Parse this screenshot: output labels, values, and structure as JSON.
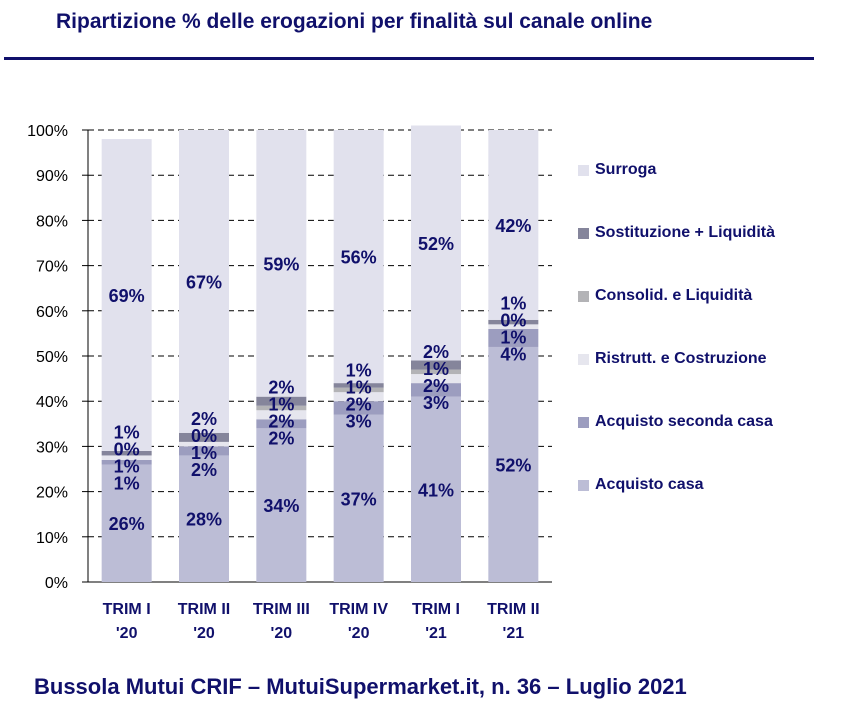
{
  "title": "Ripartizione %  delle erogazioni per finalità sul canale online",
  "footer": "Bussola Mutui CRIF – MutuiSupermarket.it, n. 36 – Luglio 2021",
  "chart_data": {
    "type": "bar",
    "stacked": true,
    "categories": [
      "TRIM I\n'20",
      "TRIM II\n'20",
      "TRIM III\n'20",
      "TRIM IV\n'20",
      "TRIM I\n'21",
      "TRIM II\n'21"
    ],
    "ylim": [
      0,
      100
    ],
    "yticks": [
      "0%",
      "10%",
      "20%",
      "30%",
      "40%",
      "50%",
      "60%",
      "70%",
      "80%",
      "90%",
      "100%"
    ],
    "grid": true,
    "legend_position": "right",
    "series": [
      {
        "name": "Acquisto casa",
        "color": "#bcbdd6",
        "values": [
          26,
          28,
          34,
          37,
          41,
          52
        ],
        "labels": [
          "26%",
          "28%",
          "34%",
          "37%",
          "41%",
          "52%"
        ]
      },
      {
        "name": "Acquisto seconda casa",
        "color": "#9c9dbf",
        "values": [
          1,
          2,
          2,
          3,
          3,
          4
        ],
        "labels": [
          "1%",
          "2%",
          "2%",
          "3%",
          "3%",
          "4%"
        ]
      },
      {
        "name": "Ristrutt. e Costruzione",
        "color": "#e6e6ee",
        "values": [
          1,
          1,
          2,
          2,
          2,
          1
        ],
        "labels": [
          "1%",
          "1%",
          "2%",
          "2%",
          "2%",
          "1%"
        ]
      },
      {
        "name": "Consolid. e Liquidità",
        "color": "#b3b3b6",
        "values": [
          0,
          0,
          1,
          1,
          1,
          0
        ],
        "labels": [
          "0%",
          "0%",
          "1%",
          "1%",
          "1%",
          "0%"
        ]
      },
      {
        "name": "Sostituzione + Liquidità",
        "color": "#85859b",
        "values": [
          1,
          2,
          2,
          1,
          2,
          1
        ],
        "labels": [
          "1%",
          "2%",
          "2%",
          "1%",
          "2%",
          "1%"
        ]
      },
      {
        "name": "Surroga",
        "color": "#e1e1ed",
        "values": [
          69,
          67,
          59,
          56,
          52,
          42
        ],
        "labels": [
          "69%",
          "67%",
          "59%",
          "56%",
          "52%",
          "42%"
        ]
      }
    ]
  },
  "legend_order": [
    "Surroga",
    "Sostituzione + Liquidità",
    "Consolid. e Liquidità",
    "Ristrutt. e Costruzione",
    "Acquisto seconda casa",
    "Acquisto casa"
  ]
}
